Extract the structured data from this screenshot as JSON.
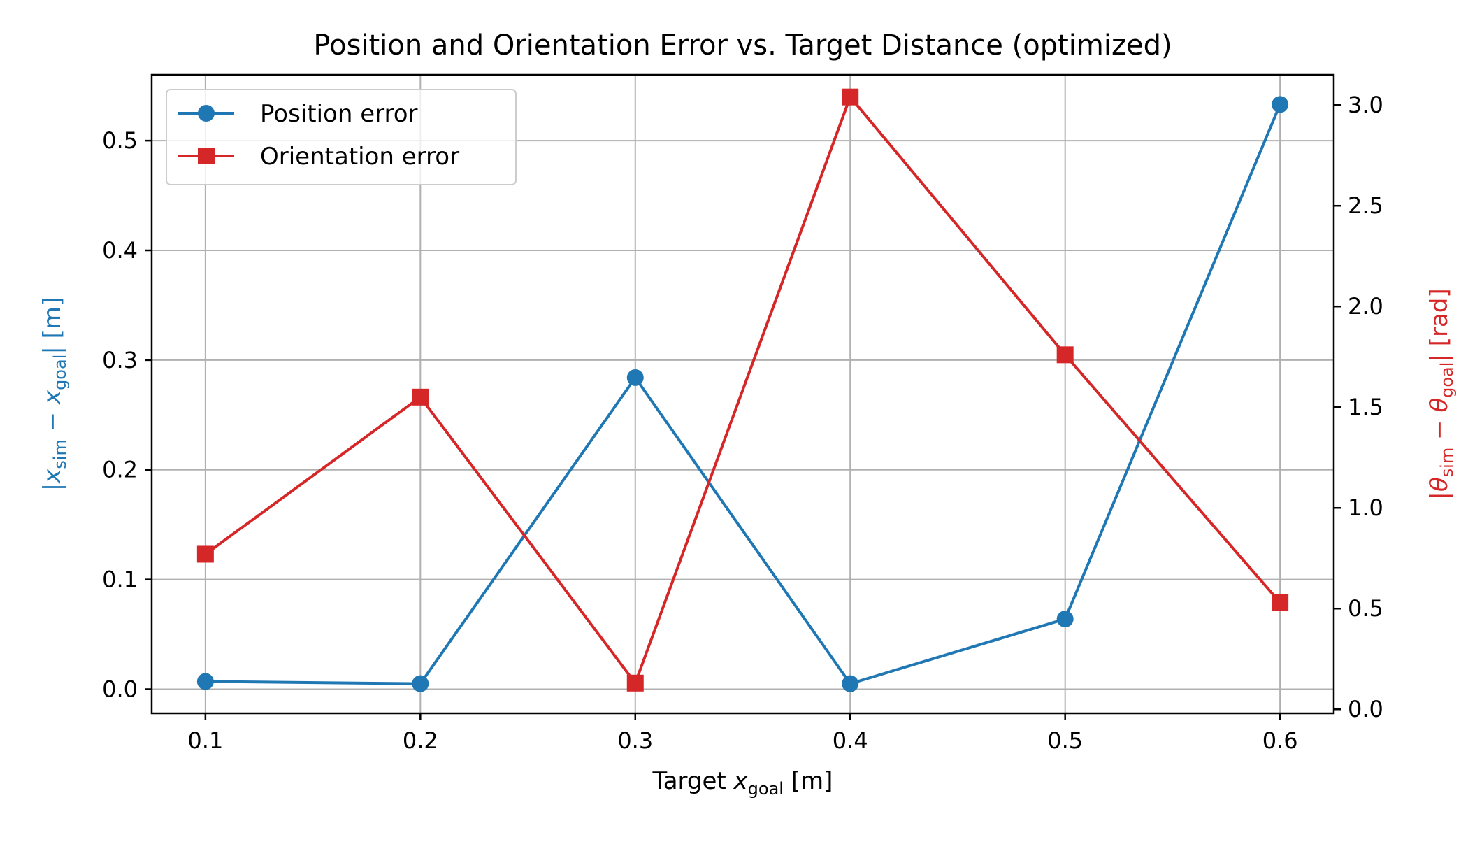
{
  "chart_data": {
    "type": "line",
    "title": "Position and Orientation Error vs. Target Distance (optimized)",
    "xlabel": {
      "prefix": "Target ",
      "var": "x",
      "sub": "goal",
      "suffix": " [m]"
    },
    "ylabel_left": {
      "open": "|",
      "var1": "x",
      "sub1": "sim",
      "op": " − ",
      "var2": "x",
      "sub2": "goal",
      "close": "| [m]"
    },
    "ylabel_right": {
      "open": "|",
      "var1": "θ",
      "sub1": "sim",
      "op": " − ",
      "var2": "θ",
      "sub2": "goal",
      "close": "| [rad]"
    },
    "x": [
      0.1,
      0.2,
      0.3,
      0.4,
      0.5,
      0.6
    ],
    "xticks": [
      "0.1",
      "0.2",
      "0.3",
      "0.4",
      "0.5",
      "0.6"
    ],
    "xlim": [
      0.075,
      0.625
    ],
    "ylim_left": [
      -0.022,
      0.56
    ],
    "yticks_left": [
      "0.0",
      "0.1",
      "0.2",
      "0.3",
      "0.4",
      "0.5"
    ],
    "ylim_right": [
      -0.02,
      3.15
    ],
    "yticks_right": [
      "0.0",
      "0.5",
      "1.0",
      "1.5",
      "2.0",
      "2.5",
      "3.0"
    ],
    "grid": true,
    "legend_position": "upper-left",
    "series": [
      {
        "name": "Position error",
        "axis": "left",
        "marker": "circle",
        "color": "#1f77b4",
        "values": [
          0.007,
          0.005,
          0.284,
          0.005,
          0.064,
          0.533
        ]
      },
      {
        "name": "Orientation error",
        "axis": "right",
        "marker": "square",
        "color": "#d62728",
        "values": [
          0.77,
          1.55,
          0.13,
          3.04,
          1.76,
          0.53
        ]
      }
    ]
  }
}
